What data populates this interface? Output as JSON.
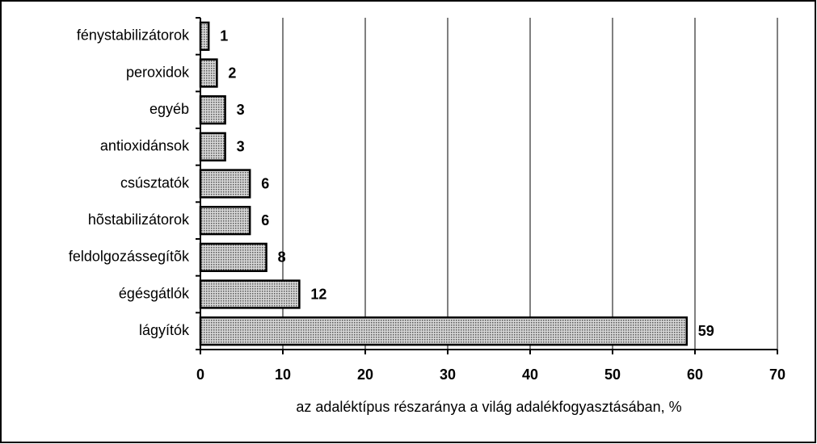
{
  "chart_data": {
    "type": "bar",
    "orientation": "horizontal",
    "categories": [
      "fénystabilizátorok",
      "peroxidok",
      "egyéb",
      "antioxidánsok",
      "csúsztatók",
      "hõstabilizátorok",
      "feldolgozássegítõk",
      "égésgátlók",
      "lágyítók"
    ],
    "values": [
      1,
      2,
      3,
      3,
      6,
      6,
      8,
      12,
      59
    ],
    "xlabel": "az adaléktípus részaránya a világ adalékfogyasztásában, %",
    "xlim": [
      0,
      70
    ],
    "xticks": [
      0,
      10,
      20,
      30,
      40,
      50,
      60,
      70
    ],
    "grid": true,
    "color": "#808080"
  }
}
